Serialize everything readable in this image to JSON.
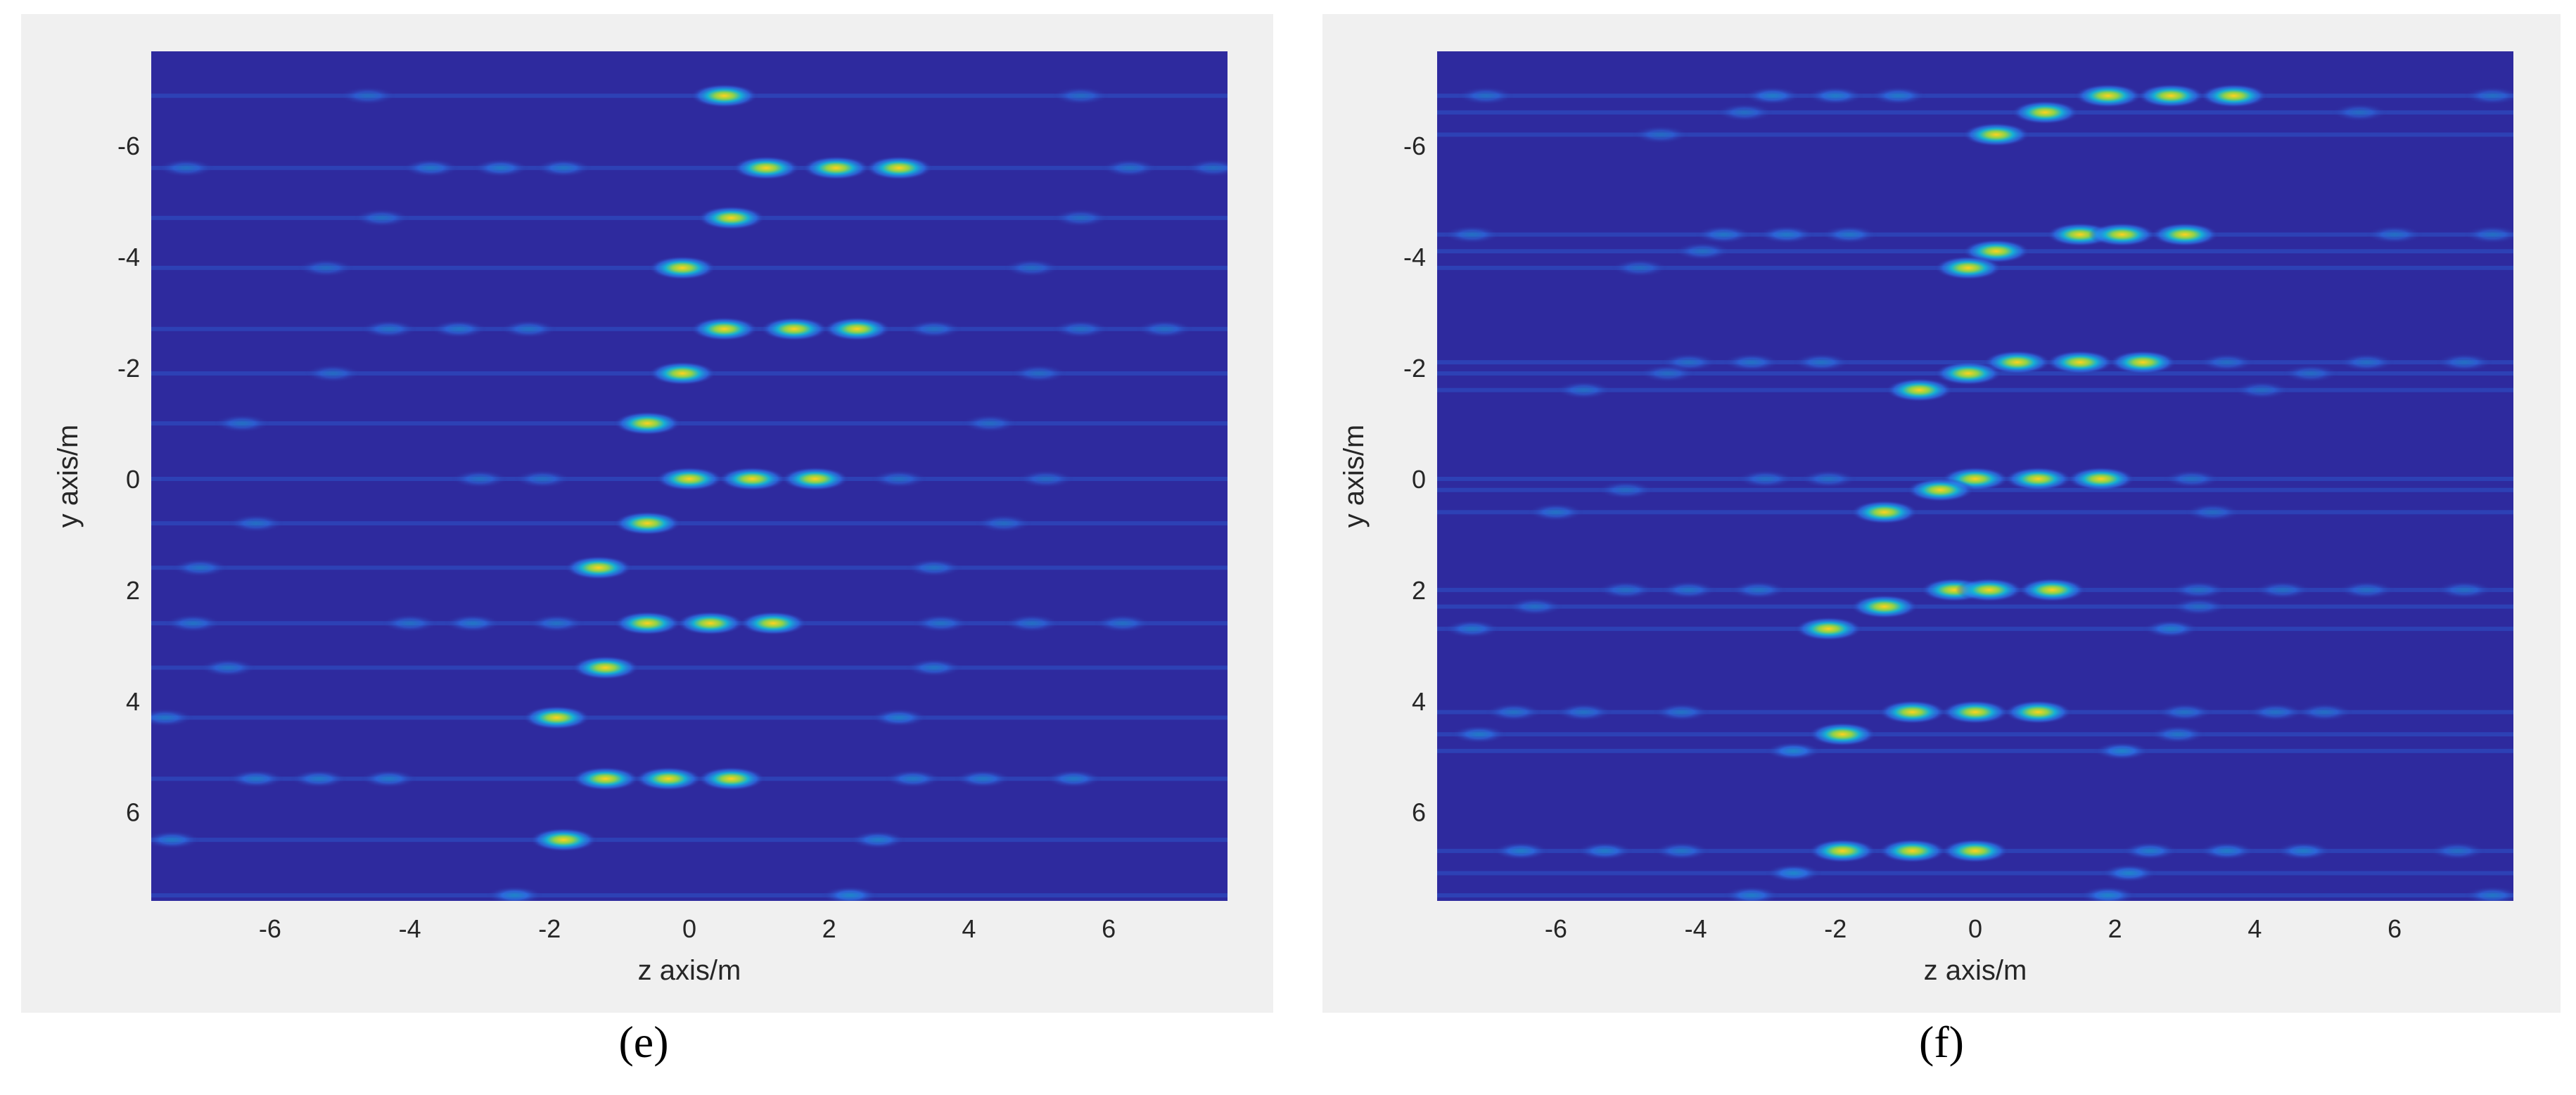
{
  "colors": {
    "background": "#2e2a9e",
    "peak": "#ffd21e",
    "halo": "#14b6d6",
    "mid": "#2c7df2"
  },
  "chart_data": [
    {
      "type": "heatmap",
      "panel_label": "(e)",
      "xlabel": "z axis/m",
      "ylabel": "y axis/m",
      "xlim": [
        -7.7,
        7.7
      ],
      "ylim": [
        -7.7,
        7.6
      ],
      "y_reversed": true,
      "grid": false,
      "colormap": "parula",
      "x_ticks": [
        "-6",
        "-4",
        "-2",
        "0",
        "2",
        "4",
        "6"
      ],
      "y_ticks": [
        "-6",
        "-4",
        "-2",
        "0",
        "2",
        "4",
        "6"
      ],
      "rows": [
        {
          "y": -6.9,
          "peaks": [
            [
              0.5,
              0.9
            ],
            [
              -4.6,
              0.25
            ],
            [
              5.6,
              0.25
            ]
          ]
        },
        {
          "y": -5.6,
          "peaks": [
            [
              1.1,
              1.0
            ],
            [
              2.1,
              1.0
            ],
            [
              3.0,
              1.0
            ],
            [
              -3.7,
              0.4
            ],
            [
              -2.7,
              0.45
            ],
            [
              -1.8,
              0.4
            ],
            [
              -7.2,
              0.3
            ],
            [
              6.3,
              0.3
            ],
            [
              7.5,
              0.25
            ]
          ]
        },
        {
          "y": -4.7,
          "peaks": [
            [
              0.6,
              0.9
            ],
            [
              -4.4,
              0.3
            ],
            [
              5.6,
              0.25
            ]
          ]
        },
        {
          "y": -3.8,
          "peaks": [
            [
              -0.1,
              0.9
            ],
            [
              -5.2,
              0.25
            ],
            [
              4.9,
              0.25
            ]
          ]
        },
        {
          "y": -2.7,
          "peaks": [
            [
              0.5,
              1.0
            ],
            [
              1.5,
              1.0
            ],
            [
              2.4,
              1.0
            ],
            [
              -4.3,
              0.35
            ],
            [
              -3.3,
              0.4
            ],
            [
              -2.3,
              0.35
            ],
            [
              3.5,
              0.35
            ],
            [
              5.6,
              0.3
            ],
            [
              6.8,
              0.3
            ]
          ]
        },
        {
          "y": -1.9,
          "peaks": [
            [
              -0.1,
              0.9
            ],
            [
              -5.1,
              0.25
            ],
            [
              5.0,
              0.25
            ]
          ]
        },
        {
          "y": -1.0,
          "peaks": [
            [
              -0.6,
              0.85
            ],
            [
              -6.4,
              0.3
            ],
            [
              4.3,
              0.25
            ]
          ]
        },
        {
          "y": 0.0,
          "peaks": [
            [
              0.0,
              1.0
            ],
            [
              0.9,
              1.0
            ],
            [
              1.8,
              1.0
            ],
            [
              -3.0,
              0.3
            ],
            [
              -2.1,
              0.3
            ],
            [
              3.0,
              0.3
            ],
            [
              5.1,
              0.25
            ]
          ]
        },
        {
          "y": 0.8,
          "peaks": [
            [
              -0.6,
              0.85
            ],
            [
              -6.2,
              0.3
            ],
            [
              4.5,
              0.25
            ]
          ]
        },
        {
          "y": 1.6,
          "peaks": [
            [
              -1.3,
              0.85
            ],
            [
              -7.0,
              0.35
            ],
            [
              3.5,
              0.35
            ]
          ]
        },
        {
          "y": 2.6,
          "peaks": [
            [
              -0.6,
              1.0
            ],
            [
              0.3,
              1.0
            ],
            [
              1.2,
              1.0
            ],
            [
              -4.0,
              0.3
            ],
            [
              -3.1,
              0.4
            ],
            [
              -1.9,
              0.35
            ],
            [
              3.6,
              0.35
            ],
            [
              4.9,
              0.3
            ],
            [
              6.2,
              0.3
            ],
            [
              -7.1,
              0.35
            ]
          ]
        },
        {
          "y": 3.4,
          "peaks": [
            [
              -1.2,
              0.9
            ],
            [
              -6.6,
              0.35
            ],
            [
              3.5,
              0.4
            ]
          ]
        },
        {
          "y": 4.3,
          "peaks": [
            [
              -1.9,
              0.85
            ],
            [
              -7.5,
              0.4
            ],
            [
              3.0,
              0.5
            ]
          ]
        },
        {
          "y": 5.4,
          "peaks": [
            [
              -1.2,
              1.0
            ],
            [
              -0.3,
              1.0
            ],
            [
              0.6,
              1.0
            ],
            [
              -6.2,
              0.45
            ],
            [
              -5.3,
              0.45
            ],
            [
              -4.3,
              0.45
            ],
            [
              3.2,
              0.45
            ],
            [
              4.2,
              0.45
            ],
            [
              5.5,
              0.45
            ]
          ]
        },
        {
          "y": 6.5,
          "peaks": [
            [
              -1.8,
              0.9
            ],
            [
              -7.4,
              0.45
            ],
            [
              2.7,
              0.5
            ]
          ]
        },
        {
          "y": 7.5,
          "peaks": [
            [
              -2.5,
              0.6
            ],
            [
              2.3,
              0.6
            ]
          ]
        }
      ]
    },
    {
      "type": "heatmap",
      "panel_label": "(f)",
      "xlabel": "z axis/m",
      "ylabel": "y axis/m",
      "xlim": [
        -7.7,
        7.7
      ],
      "ylim": [
        -7.7,
        7.6
      ],
      "y_reversed": true,
      "grid": false,
      "colormap": "parula",
      "x_ticks": [
        "-6",
        "-4",
        "-2",
        "0",
        "2",
        "4",
        "6"
      ],
      "y_ticks": [
        "-6",
        "-4",
        "-2",
        "0",
        "2",
        "4",
        "6"
      ],
      "rows": [
        {
          "y": -6.9,
          "peaks": [
            [
              1.9,
              1.0
            ],
            [
              2.8,
              1.0
            ],
            [
              3.7,
              0.85
            ],
            [
              -2.9,
              0.5
            ],
            [
              -2.0,
              0.5
            ],
            [
              -1.1,
              0.45
            ],
            [
              -7.0,
              0.3
            ],
            [
              7.4,
              0.3
            ]
          ]
        },
        {
          "y": -6.6,
          "peaks": [
            [
              1.0,
              0.8
            ],
            [
              -3.3,
              0.3
            ],
            [
              5.5,
              0.25
            ]
          ]
        },
        {
          "y": -6.2,
          "peaks": [
            [
              0.3,
              0.85
            ],
            [
              -4.5,
              0.25
            ]
          ]
        },
        {
          "y": -4.4,
          "peaks": [
            [
              1.5,
              1.0
            ],
            [
              2.1,
              1.0
            ],
            [
              3.0,
              1.0
            ],
            [
              -3.6,
              0.4
            ],
            [
              -2.7,
              0.45
            ],
            [
              -1.8,
              0.4
            ],
            [
              -7.2,
              0.3
            ],
            [
              6.0,
              0.3
            ],
            [
              7.4,
              0.3
            ]
          ]
        },
        {
          "y": -4.1,
          "peaks": [
            [
              0.3,
              0.8
            ],
            [
              -3.9,
              0.3
            ]
          ]
        },
        {
          "y": -3.8,
          "peaks": [
            [
              -0.1,
              0.85
            ],
            [
              -4.8,
              0.25
            ]
          ]
        },
        {
          "y": -2.1,
          "peaks": [
            [
              0.6,
              1.0
            ],
            [
              1.5,
              1.0
            ],
            [
              2.4,
              1.0
            ],
            [
              -4.1,
              0.3
            ],
            [
              -3.2,
              0.35
            ],
            [
              -2.2,
              0.35
            ],
            [
              3.6,
              0.3
            ],
            [
              5.6,
              0.3
            ],
            [
              7.0,
              0.3
            ]
          ]
        },
        {
          "y": -1.9,
          "peaks": [
            [
              -0.1,
              0.8
            ],
            [
              -4.4,
              0.25
            ],
            [
              4.8,
              0.25
            ]
          ]
        },
        {
          "y": -1.6,
          "peaks": [
            [
              -0.8,
              0.85
            ],
            [
              -5.6,
              0.3
            ],
            [
              4.1,
              0.25
            ]
          ]
        },
        {
          "y": 0.0,
          "peaks": [
            [
              0.0,
              1.0
            ],
            [
              0.9,
              1.0
            ],
            [
              1.8,
              1.0
            ],
            [
              -3.0,
              0.3
            ],
            [
              -2.1,
              0.3
            ],
            [
              3.1,
              0.3
            ]
          ]
        },
        {
          "y": 0.2,
          "peaks": [
            [
              -0.5,
              0.8
            ],
            [
              -5.0,
              0.25
            ]
          ]
        },
        {
          "y": 0.6,
          "peaks": [
            [
              -1.3,
              0.8
            ],
            [
              -6.0,
              0.35
            ],
            [
              3.4,
              0.25
            ]
          ]
        },
        {
          "y": 2.0,
          "peaks": [
            [
              -0.3,
              1.0
            ],
            [
              0.2,
              1.0
            ],
            [
              1.1,
              1.0
            ],
            [
              -5.0,
              0.3
            ],
            [
              -4.1,
              0.35
            ],
            [
              -3.1,
              0.35
            ],
            [
              3.2,
              0.3
            ],
            [
              4.4,
              0.3
            ],
            [
              5.6,
              0.3
            ],
            [
              7.0,
              0.3
            ]
          ]
        },
        {
          "y": 2.3,
          "peaks": [
            [
              -1.3,
              0.8
            ],
            [
              -6.3,
              0.3
            ],
            [
              3.2,
              0.25
            ]
          ]
        },
        {
          "y": 2.7,
          "peaks": [
            [
              -2.1,
              0.8
            ],
            [
              -7.2,
              0.4
            ],
            [
              2.8,
              0.5
            ]
          ]
        },
        {
          "y": 4.2,
          "peaks": [
            [
              -0.9,
              1.0
            ],
            [
              0.0,
              1.0
            ],
            [
              0.9,
              1.0
            ],
            [
              -6.6,
              0.35
            ],
            [
              -5.6,
              0.35
            ],
            [
              -4.2,
              0.35
            ],
            [
              3.0,
              0.35
            ],
            [
              4.3,
              0.35
            ],
            [
              5.0,
              0.3
            ]
          ]
        },
        {
          "y": 4.6,
          "peaks": [
            [
              -1.9,
              0.8
            ],
            [
              -7.1,
              0.45
            ],
            [
              2.9,
              0.4
            ]
          ]
        },
        {
          "y": 4.9,
          "peaks": [
            [
              -2.6,
              0.7
            ],
            [
              2.1,
              0.6
            ]
          ]
        },
        {
          "y": 6.7,
          "peaks": [
            [
              -1.9,
              1.0
            ],
            [
              -0.9,
              1.0
            ],
            [
              0.0,
              1.0
            ],
            [
              -6.5,
              0.5
            ],
            [
              -5.3,
              0.5
            ],
            [
              -4.2,
              0.4
            ],
            [
              2.5,
              0.5
            ],
            [
              3.6,
              0.5
            ],
            [
              4.7,
              0.5
            ],
            [
              6.9,
              0.3
            ]
          ]
        },
        {
          "y": 7.1,
          "peaks": [
            [
              -2.6,
              0.7
            ],
            [
              2.2,
              0.6
            ]
          ]
        },
        {
          "y": 7.5,
          "peaks": [
            [
              -3.2,
              0.5
            ],
            [
              1.9,
              0.6
            ],
            [
              7.4,
              0.4
            ]
          ]
        }
      ]
    }
  ]
}
